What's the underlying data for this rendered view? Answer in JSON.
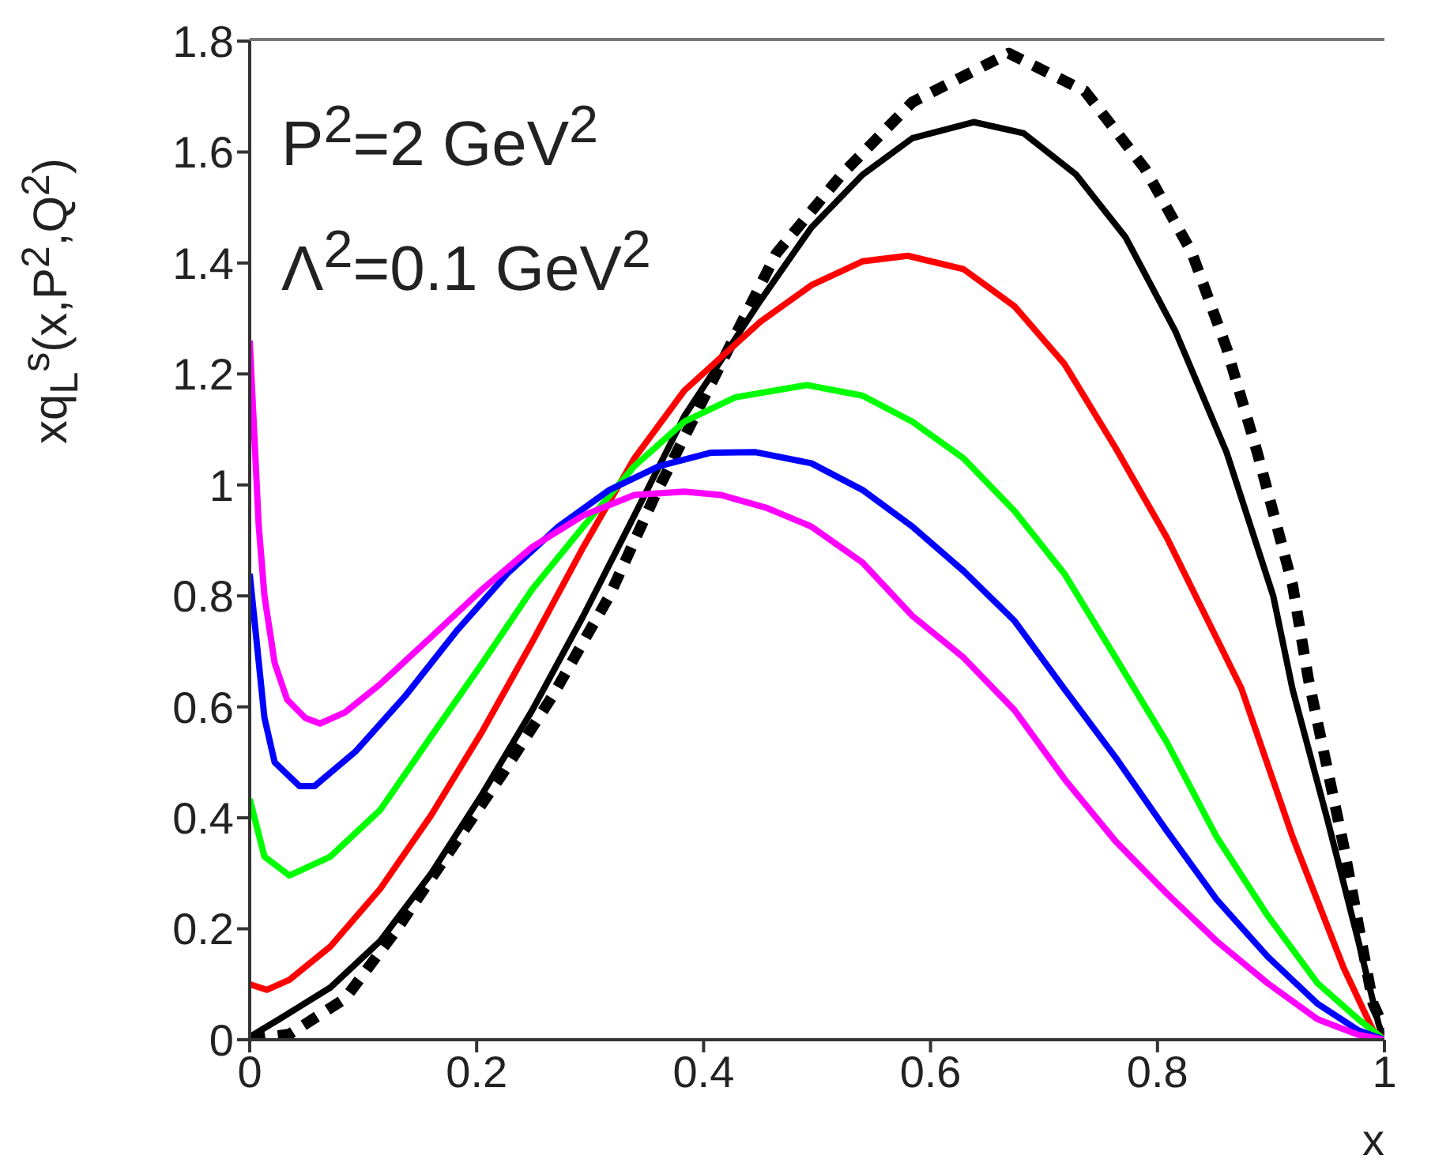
{
  "chart_data": {
    "type": "line",
    "xlabel": "x",
    "ylabel": "xq$_{L}$$^{s}$(x,P$^{2}$,Q$^{2}$)",
    "annotations": [
      "P$^{2}$=2 GeV$^{2}$",
      "Λ$^{2}$=0.1 GeV$^{2}$"
    ],
    "xlim": [
      0,
      1
    ],
    "xticks": [
      0,
      0.2,
      0.4,
      0.6,
      0.8,
      1
    ],
    "ylim": [
      0,
      1.8
    ],
    "yticks": [
      0,
      0.2,
      0.4,
      0.6,
      0.8,
      1,
      1.2,
      1.4,
      1.6,
      1.8
    ],
    "grid": false,
    "legend": false,
    "marker": "none",
    "series": [
      {
        "color": "#000000",
        "line_style": "dashed",
        "x": [
          0,
          0.035,
          0.084,
          0.129,
          0.173,
          0.223,
          0.267,
          0.317,
          0.357,
          0.406,
          0.464,
          0.522,
          0.584,
          0.669,
          0.736,
          0.789,
          0.83,
          0.861,
          0.888,
          0.919,
          0.933,
          0.964,
          0.99,
          1
        ],
        "values": [
          0,
          0.01,
          0.074,
          0.197,
          0.33,
          0.48,
          0.62,
          0.8,
          0.98,
          1.18,
          1.417,
          1.56,
          1.69,
          1.778,
          1.71,
          1.57,
          1.42,
          1.246,
          1.058,
          0.82,
          0.65,
          0.35,
          0.065,
          0.02
        ]
      },
      {
        "color": "#000000",
        "line_style": "solid",
        "x": [
          0,
          0.026,
          0.071,
          0.115,
          0.16,
          0.205,
          0.249,
          0.294,
          0.339,
          0.383,
          0.45,
          0.495,
          0.54,
          0.584,
          0.638,
          0.682,
          0.728,
          0.772,
          0.816,
          0.861,
          0.902,
          0.919,
          0.95,
          0.977,
          0.995,
          1
        ],
        "values": [
          0.005,
          0.037,
          0.094,
          0.178,
          0.3,
          0.443,
          0.594,
          0.764,
          0.945,
          1.124,
          1.332,
          1.464,
          1.559,
          1.625,
          1.654,
          1.634,
          1.56,
          1.446,
          1.276,
          1.058,
          0.8,
          0.632,
          0.395,
          0.178,
          0.027,
          0
        ]
      },
      {
        "color": "#ff0000",
        "line_style": "solid",
        "x": [
          0,
          0.015,
          0.035,
          0.071,
          0.115,
          0.16,
          0.205,
          0.249,
          0.294,
          0.339,
          0.383,
          0.45,
          0.495,
          0.54,
          0.58,
          0.629,
          0.674,
          0.718,
          0.763,
          0.808,
          0.874,
          0.919,
          0.964,
          0.99,
          1
        ],
        "values": [
          0.1,
          0.09,
          0.108,
          0.168,
          0.272,
          0.405,
          0.556,
          0.717,
          0.888,
          1.048,
          1.17,
          1.294,
          1.36,
          1.403,
          1.413,
          1.389,
          1.322,
          1.218,
          1.067,
          0.906,
          0.633,
          0.366,
          0.13,
          0.017,
          0
        ]
      },
      {
        "color": "#00ff00",
        "line_style": "solid",
        "x": [
          0,
          0.013,
          0.035,
          0.071,
          0.115,
          0.16,
          0.205,
          0.249,
          0.294,
          0.339,
          0.383,
          0.428,
          0.491,
          0.54,
          0.584,
          0.629,
          0.674,
          0.718,
          0.763,
          0.808,
          0.852,
          0.897,
          0.941,
          0.977,
          1
        ],
        "values": [
          0.434,
          0.33,
          0.296,
          0.33,
          0.414,
          0.547,
          0.679,
          0.812,
          0.925,
          1.034,
          1.114,
          1.158,
          1.18,
          1.161,
          1.114,
          1.048,
          0.953,
          0.84,
          0.689,
          0.537,
          0.366,
          0.224,
          0.102,
          0.037,
          0
        ]
      },
      {
        "color": "#0000ff",
        "line_style": "solid",
        "x": [
          0,
          0.013,
          0.022,
          0.044,
          0.057,
          0.093,
          0.138,
          0.182,
          0.227,
          0.272,
          0.317,
          0.361,
          0.406,
          0.446,
          0.495,
          0.54,
          0.584,
          0.629,
          0.674,
          0.718,
          0.763,
          0.808,
          0.852,
          0.897,
          0.941,
          0.977,
          1
        ],
        "values": [
          0.84,
          0.58,
          0.5,
          0.457,
          0.457,
          0.519,
          0.622,
          0.736,
          0.84,
          0.925,
          0.991,
          1.034,
          1.058,
          1.059,
          1.039,
          0.991,
          0.925,
          0.845,
          0.755,
          0.632,
          0.509,
          0.377,
          0.253,
          0.15,
          0.065,
          0.017,
          0
        ]
      },
      {
        "color": "#ff00ff",
        "line_style": "solid",
        "x": [
          0,
          0.008,
          0.013,
          0.022,
          0.033,
          0.049,
          0.062,
          0.084,
          0.115,
          0.16,
          0.205,
          0.249,
          0.294,
          0.339,
          0.383,
          0.415,
          0.455,
          0.495,
          0.54,
          0.584,
          0.629,
          0.674,
          0.718,
          0.763,
          0.808,
          0.852,
          0.897,
          0.941,
          0.977,
          1
        ],
        "values": [
          1.26,
          0.925,
          0.8,
          0.679,
          0.613,
          0.58,
          0.57,
          0.59,
          0.641,
          0.726,
          0.812,
          0.888,
          0.945,
          0.982,
          0.988,
          0.982,
          0.959,
          0.925,
          0.86,
          0.764,
          0.689,
          0.594,
          0.47,
          0.358,
          0.264,
          0.178,
          0.102,
          0.037,
          0.009,
          0
        ]
      }
    ]
  }
}
